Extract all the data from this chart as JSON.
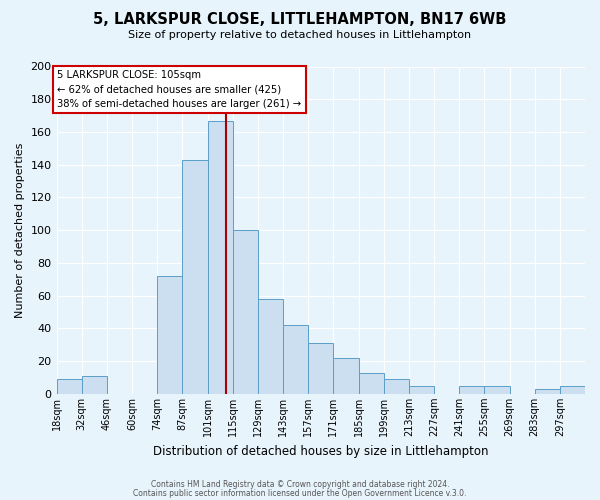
{
  "title": "5, LARKSPUR CLOSE, LITTLEHAMPTON, BN17 6WB",
  "subtitle": "Size of property relative to detached houses in Littlehampton",
  "xlabel": "Distribution of detached houses by size in Littlehampton",
  "ylabel": "Number of detached properties",
  "bar_labels": [
    "18sqm",
    "32sqm",
    "46sqm",
    "60sqm",
    "74sqm",
    "87sqm",
    "101sqm",
    "115sqm",
    "129sqm",
    "143sqm",
    "157sqm",
    "171sqm",
    "185sqm",
    "199sqm",
    "213sqm",
    "227sqm",
    "241sqm",
    "255sqm",
    "269sqm",
    "283sqm",
    "297sqm"
  ],
  "bar_values": [
    9,
    11,
    0,
    0,
    72,
    143,
    167,
    100,
    58,
    42,
    31,
    22,
    13,
    9,
    5,
    0,
    5,
    5,
    0,
    3,
    5
  ],
  "bar_color": "#ccdff0",
  "bar_edge_color": "#5a9ec9",
  "background_color": "#e8f4fc",
  "plot_bg_color": "#e8f4fc",
  "grid_color": "#ffffff",
  "ylim": [
    0,
    200
  ],
  "yticks": [
    0,
    20,
    40,
    60,
    80,
    100,
    120,
    140,
    160,
    180,
    200
  ],
  "property_line_color": "#aa0000",
  "annotation_line1": "5 LARKSPUR CLOSE: 105sqm",
  "annotation_line2": "← 62% of detached houses are smaller (425)",
  "annotation_line3": "38% of semi-detached houses are larger (261) →",
  "annotation_box_color": "#ffffff",
  "annotation_box_edge_color": "#cc0000",
  "footer1": "Contains HM Land Registry data © Crown copyright and database right 2024.",
  "footer2": "Contains public sector information licensed under the Open Government Licence v.3.0.",
  "bin_edges": [
    11,
    25,
    39,
    53,
    67,
    81,
    95,
    109,
    123,
    137,
    151,
    165,
    179,
    193,
    207,
    221,
    235,
    249,
    263,
    277,
    291,
    305
  ],
  "property_value": 105
}
